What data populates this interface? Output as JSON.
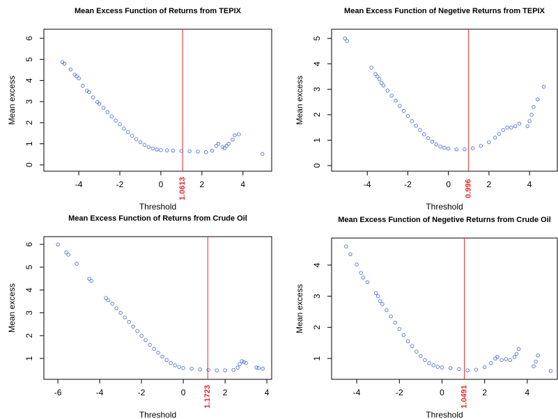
{
  "chart_data": [
    {
      "type": "scatter",
      "title": "Mean Excess Function of Returns from TEPIX",
      "xlabel": "Threshold",
      "ylabel": "Mean excess",
      "x": [
        -4.8,
        -4.7,
        -4.4,
        -4.2,
        -4.1,
        -4.0,
        -3.8,
        -3.6,
        -3.5,
        -3.3,
        -3.1,
        -3.0,
        -2.8,
        -2.6,
        -2.4,
        -2.2,
        -2.0,
        -1.8,
        -1.6,
        -1.4,
        -1.2,
        -1.0,
        -0.8,
        -0.6,
        -0.4,
        -0.2,
        0,
        0.3,
        0.6,
        1.0,
        1.4,
        1.8,
        2.2,
        2.5,
        2.7,
        2.8,
        3.0,
        3.1,
        3.2,
        3.3,
        3.5,
        3.6,
        3.8,
        4.95
      ],
      "values": [
        4.87,
        4.8,
        4.52,
        4.28,
        4.2,
        4.1,
        3.75,
        3.52,
        3.45,
        3.2,
        2.98,
        2.9,
        2.7,
        2.5,
        2.3,
        2.1,
        1.92,
        1.72,
        1.55,
        1.38,
        1.22,
        1.08,
        0.95,
        0.85,
        0.78,
        0.73,
        0.7,
        0.69,
        0.68,
        0.66,
        0.65,
        0.63,
        0.6,
        0.68,
        0.9,
        1.0,
        0.85,
        0.8,
        0.9,
        1.0,
        1.2,
        1.4,
        1.45,
        0.52
      ],
      "color": "#3f63d6",
      "xlim": [
        -5.7,
        5.4
      ],
      "ylim": [
        -0.3,
        6.43
      ],
      "xticks": [
        -4,
        -2,
        0,
        2,
        4
      ],
      "yticks": [
        0,
        1,
        2,
        3,
        4,
        5,
        6
      ],
      "threshold": 1.0613,
      "threshold_color": "#e8262a"
    },
    {
      "type": "scatter",
      "title": "Mean Excess Function of Negetive Returns from TEPIX",
      "xlabel": "Threshold",
      "ylabel": "Mean excess",
      "x": [
        -5.1,
        -5.0,
        -3.8,
        -3.6,
        -3.5,
        -3.4,
        -3.3,
        -3.2,
        -3.0,
        -2.8,
        -2.6,
        -2.4,
        -2.2,
        -2.0,
        -1.8,
        -1.6,
        -1.4,
        -1.2,
        -1.0,
        -0.8,
        -0.6,
        -0.4,
        -0.2,
        0,
        0.4,
        0.8,
        1.2,
        1.6,
        2.0,
        2.3,
        2.5,
        2.7,
        2.9,
        3.1,
        3.3,
        3.5,
        3.9,
        4.0,
        4.1,
        4.2,
        4.4,
        4.7
      ],
      "values": [
        5.0,
        4.9,
        3.85,
        3.6,
        3.5,
        3.4,
        3.25,
        3.15,
        2.95,
        2.75,
        2.55,
        2.35,
        2.15,
        1.95,
        1.75,
        1.57,
        1.4,
        1.23,
        1.08,
        0.94,
        0.83,
        0.75,
        0.7,
        0.67,
        0.64,
        0.64,
        0.68,
        0.78,
        0.92,
        1.1,
        1.25,
        1.4,
        1.5,
        1.5,
        1.55,
        1.65,
        1.55,
        1.75,
        2.0,
        2.3,
        2.6,
        3.1
      ],
      "color": "#3f63d6",
      "xlim": [
        -5.76,
        5.37
      ],
      "ylim": [
        -0.22,
        5.36
      ],
      "xticks": [
        -4,
        -2,
        0,
        2,
        4
      ],
      "yticks": [
        0,
        1,
        2,
        3,
        4,
        5
      ],
      "threshold": 0.996,
      "threshold_color": "#e8262a"
    },
    {
      "type": "scatter",
      "title": "Mean Excess Function of Returns from Crude Oil",
      "xlabel": "Threshold",
      "ylabel": "Mean excess",
      "x": [
        -6.0,
        -5.6,
        -5.5,
        -5.1,
        -4.5,
        -4.4,
        -3.7,
        -3.6,
        -3.4,
        -3.2,
        -3.0,
        -2.8,
        -2.6,
        -2.4,
        -2.2,
        -2.0,
        -1.8,
        -1.6,
        -1.4,
        -1.2,
        -1.0,
        -0.8,
        -0.6,
        -0.4,
        -0.2,
        0,
        0.4,
        0.8,
        1.2,
        1.6,
        2.0,
        2.4,
        2.6,
        2.7,
        2.8,
        2.9,
        3.0,
        3.5,
        3.6,
        3.8
      ],
      "values": [
        6.0,
        5.65,
        5.55,
        5.15,
        4.5,
        4.4,
        3.65,
        3.55,
        3.4,
        3.2,
        3.0,
        2.8,
        2.6,
        2.4,
        2.2,
        2.0,
        1.8,
        1.6,
        1.42,
        1.25,
        1.08,
        0.93,
        0.8,
        0.7,
        0.63,
        0.58,
        0.55,
        0.52,
        0.5,
        0.48,
        0.48,
        0.5,
        0.6,
        0.75,
        0.88,
        0.85,
        0.8,
        0.6,
        0.58,
        0.55
      ],
      "color": "#3f63d6",
      "xlim": [
        -6.67,
        4.23
      ],
      "ylim": [
        0.085,
        6.34
      ],
      "xticks": [
        -6,
        -4,
        -2,
        0,
        2,
        4
      ],
      "yticks": [
        1,
        2,
        3,
        4,
        5,
        6
      ],
      "threshold": 1.1723,
      "threshold_color": "#e8262a"
    },
    {
      "type": "scatter",
      "title": "Mean Excess Function of Negetive Returns from Crude Oil",
      "xlabel": "Threshold",
      "ylabel": "Mean excess",
      "x": [
        -4.5,
        -4.3,
        -4.0,
        -3.8,
        -3.7,
        -3.5,
        -3.1,
        -3.0,
        -2.9,
        -2.8,
        -2.6,
        -2.4,
        -2.2,
        -2.0,
        -1.8,
        -1.6,
        -1.4,
        -1.2,
        -1.0,
        -0.8,
        -0.6,
        -0.4,
        -0.2,
        0,
        0.4,
        0.8,
        1.2,
        1.6,
        2.0,
        2.3,
        2.5,
        2.6,
        2.8,
        3.0,
        3.2,
        3.4,
        3.5,
        3.6,
        4.3,
        4.4,
        4.5,
        5.1
      ],
      "values": [
        4.6,
        4.35,
        4.02,
        3.75,
        3.6,
        3.45,
        3.1,
        3.0,
        2.85,
        2.75,
        2.55,
        2.35,
        2.15,
        1.95,
        1.75,
        1.55,
        1.4,
        1.22,
        1.08,
        0.95,
        0.85,
        0.78,
        0.73,
        0.71,
        0.69,
        0.66,
        0.62,
        0.64,
        0.72,
        0.85,
        1.0,
        1.05,
        0.95,
        0.98,
        0.95,
        1.05,
        1.15,
        1.3,
        0.75,
        0.9,
        1.1,
        0.6
      ],
      "color": "#3f63d6",
      "xlim": [
        -5.18,
        5.41
      ],
      "ylim": [
        0.33,
        4.87
      ],
      "xticks": [
        -4,
        -2,
        0,
        2,
        4
      ],
      "yticks": [
        1,
        2,
        3,
        4
      ],
      "threshold": 1.0491,
      "threshold_color": "#e8262a"
    }
  ]
}
